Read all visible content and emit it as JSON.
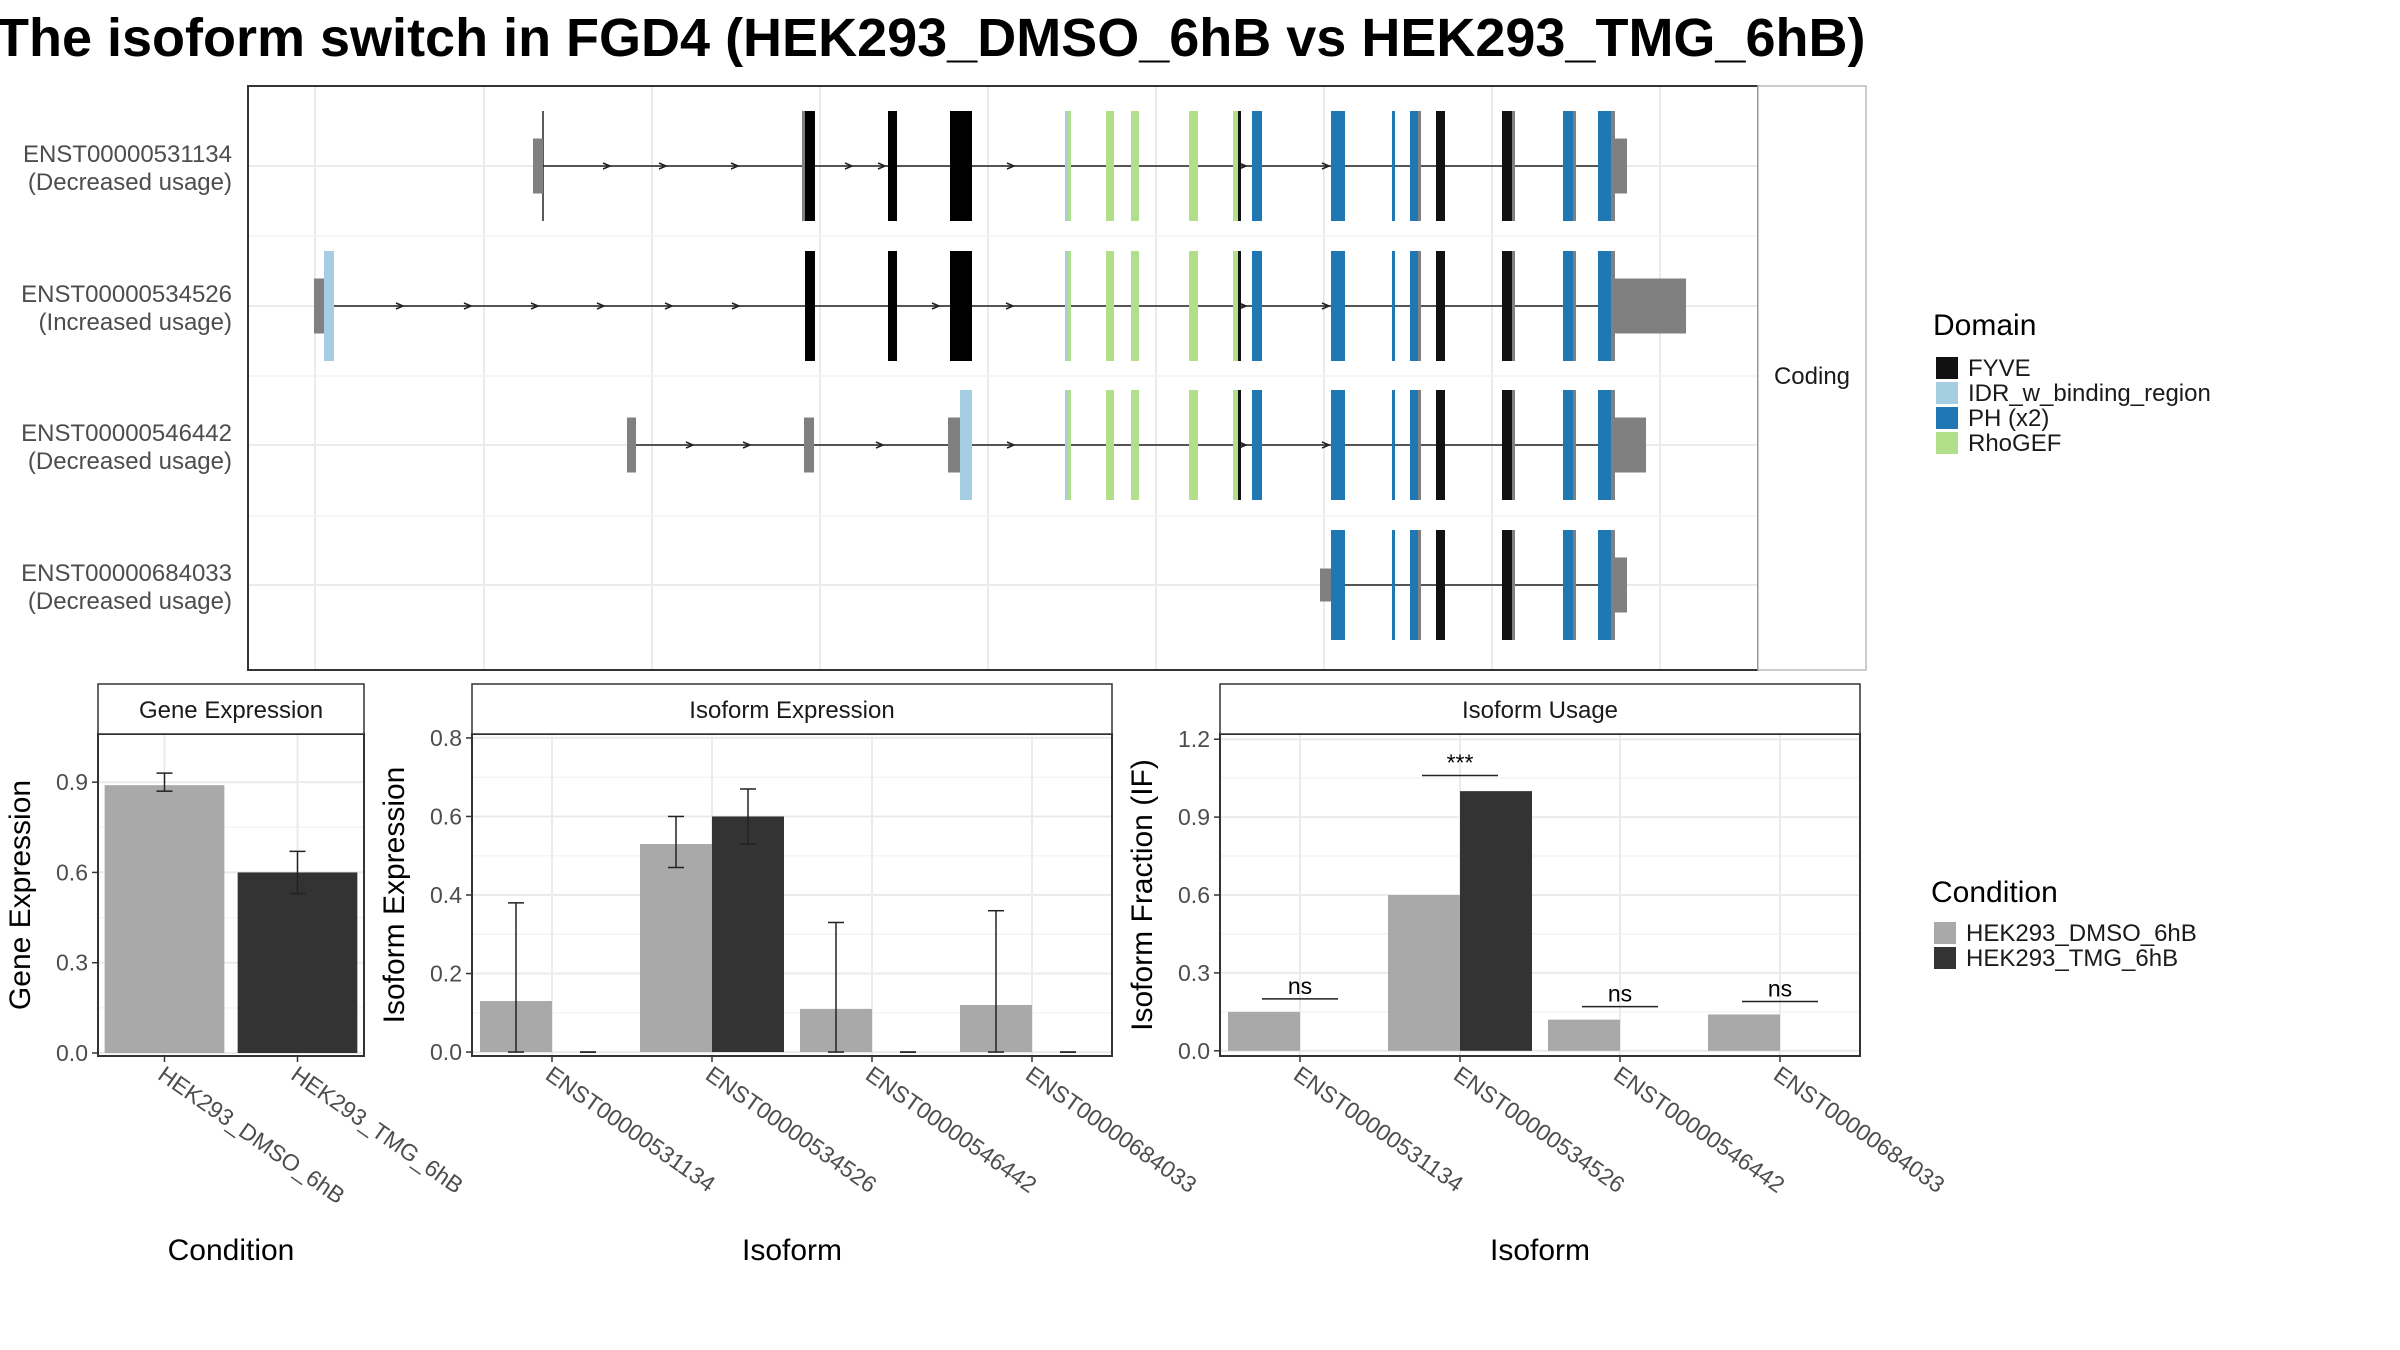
{
  "title": "The isoform switch in FGD4 (HEK293_DMSO_6hB vs HEK293_TMG_6hB)",
  "colors": {
    "FYVE": "#111111",
    "IDR_w_binding_region": "#a6cee3",
    "PH (x2)": "#1f78b4",
    "RhoGEF": "#b2df8a",
    "utr": "#808080",
    "HEK293_DMSO_6hB": "#a9a9a9",
    "HEK293_TMG_6hB": "#333333"
  },
  "structure": {
    "strip_label": "Coding",
    "transcripts": [
      {
        "id": "ENST00000531134",
        "usage": "(Decreased usage)"
      },
      {
        "id": "ENST00000534526",
        "usage": "(Increased usage)"
      },
      {
        "id": "ENST00000546442",
        "usage": "(Decreased usage)"
      },
      {
        "id": "ENST00000684033",
        "usage": "(Decreased usage)"
      }
    ],
    "domain_legend": {
      "title": "Domain",
      "entries": [
        "FYVE",
        "IDR_w_binding_region",
        "PH (x2)",
        "RhoGEF"
      ]
    }
  },
  "condition_legend": {
    "title": "Condition",
    "entries": [
      "HEK293_DMSO_6hB",
      "HEK293_TMG_6hB"
    ]
  },
  "chart_data": [
    {
      "type": "bar",
      "title": "Gene Expression",
      "xlabel": "Condition",
      "ylabel": "Gene Expression",
      "ylim": [
        -0.01,
        1.06
      ],
      "yticks": [
        "0.0",
        "0.3",
        "0.6",
        "0.9"
      ],
      "categories": [
        "HEK293_DMSO_6hB",
        "HEK293_TMG_6hB"
      ],
      "values": [
        0.89,
        0.6
      ],
      "err_low": [
        0.87,
        0.53
      ],
      "err_high": [
        0.93,
        0.67
      ]
    },
    {
      "type": "bar",
      "title": "Isoform Expression",
      "xlabel": "Isoform",
      "ylabel": "Isoform Expression",
      "ylim": [
        -0.01,
        0.81
      ],
      "yticks": [
        "0.0",
        "0.2",
        "0.4",
        "0.6",
        "0.8"
      ],
      "categories": [
        "ENST00000531134",
        "ENST00000534526",
        "ENST00000546442",
        "ENST00000684033"
      ],
      "series": [
        {
          "name": "HEK293_DMSO_6hB",
          "values": [
            0.13,
            0.53,
            0.11,
            0.12
          ],
          "err_low": [
            0.0,
            0.47,
            0.0,
            0.0
          ],
          "err_high": [
            0.38,
            0.6,
            0.33,
            0.36
          ]
        },
        {
          "name": "HEK293_TMG_6hB",
          "values": [
            0.0,
            0.6,
            0.0,
            0.0
          ],
          "err_low": [
            0.0,
            0.53,
            0.0,
            0.0
          ],
          "err_high": [
            0.0,
            0.67,
            0.0,
            0.0
          ]
        }
      ]
    },
    {
      "type": "bar",
      "title": "Isoform Usage",
      "xlabel": "Isoform",
      "ylabel": "Isoform Fraction (IF)",
      "ylim": [
        -0.02,
        1.22
      ],
      "yticks": [
        "0.0",
        "0.3",
        "0.6",
        "0.9",
        "1.2"
      ],
      "categories": [
        "ENST00000531134",
        "ENST00000534526",
        "ENST00000546442",
        "ENST00000684033"
      ],
      "series": [
        {
          "name": "HEK293_DMSO_6hB",
          "values": [
            0.15,
            0.6,
            0.12,
            0.14
          ]
        },
        {
          "name": "HEK293_TMG_6hB",
          "values": [
            0.0,
            1.0,
            0.0,
            0.0
          ]
        }
      ],
      "significance": [
        {
          "label": "ns",
          "y": 0.2
        },
        {
          "label": "***",
          "y": 1.06
        },
        {
          "label": "ns",
          "y": 0.17
        },
        {
          "label": "ns",
          "y": 0.19
        }
      ]
    }
  ]
}
